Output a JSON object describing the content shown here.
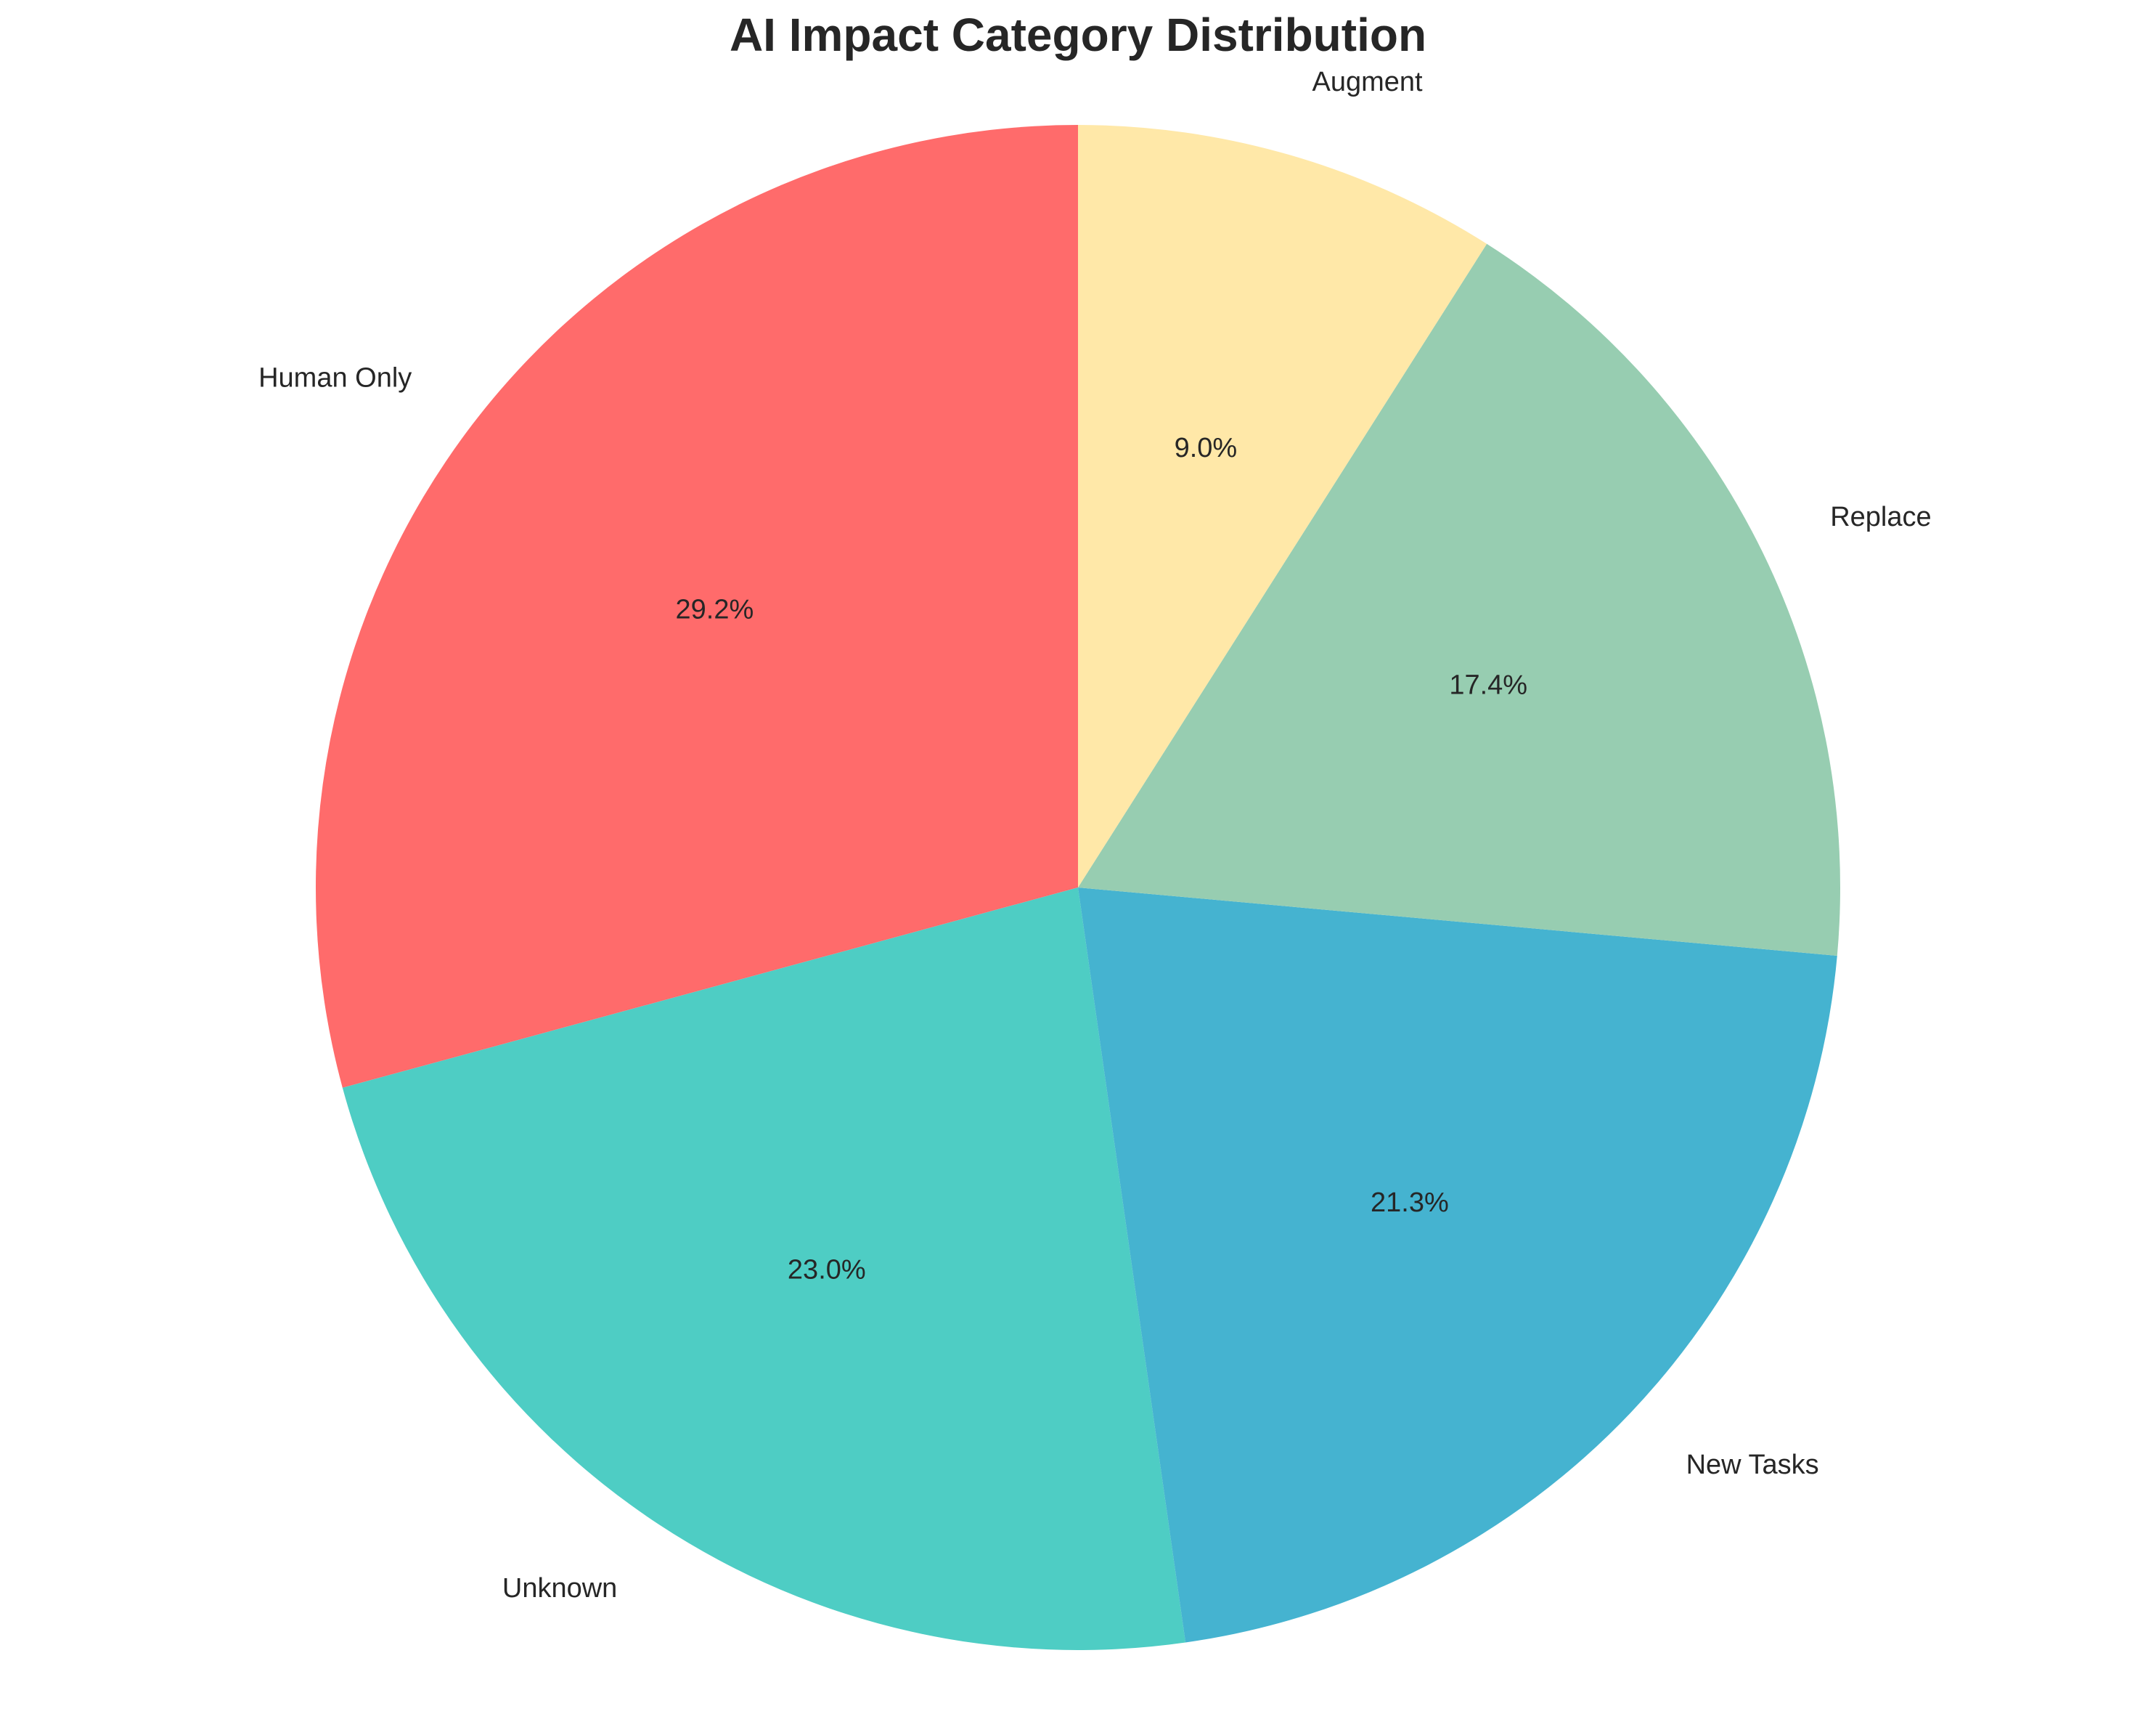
{
  "chart_data": {
    "type": "pie",
    "title": "AI Impact Category Distribution",
    "start_angle_deg": 90,
    "direction": "counterclockwise",
    "slices": [
      {
        "label": "Human Only",
        "value": 29.2,
        "pct_label": "29.2%",
        "color": "#ff6b6b"
      },
      {
        "label": "Unknown",
        "value": 23.0,
        "pct_label": "23.0%",
        "color": "#4ecdc4"
      },
      {
        "label": "New Tasks",
        "value": 21.3,
        "pct_label": "21.3%",
        "color": "#45b3d0"
      },
      {
        "label": "Replace",
        "value": 17.4,
        "pct_label": "17.4%",
        "color": "#97cdb1"
      },
      {
        "label": "Augment",
        "value": 9.0,
        "pct_label": "9.0%",
        "color": "#ffe8a8"
      }
    ]
  }
}
